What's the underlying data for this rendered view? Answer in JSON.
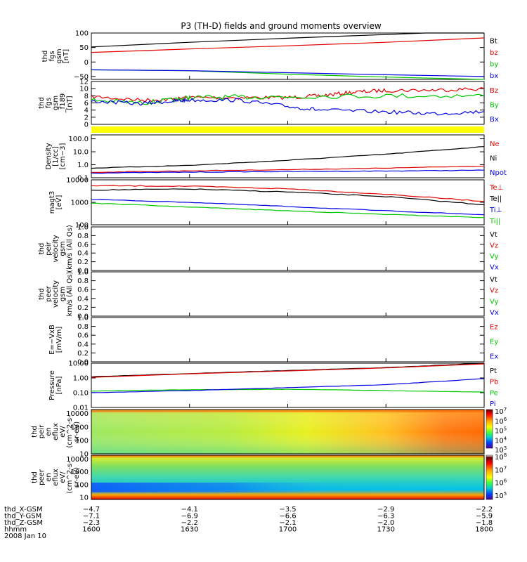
{
  "title": "P3 (TH-D) fields and ground moments overview",
  "colors": {
    "black": "#000000",
    "red": "#e00000",
    "green": "#00c800",
    "blue": "#0000e0"
  },
  "chart_data": [
    {
      "id": "p1",
      "type": "line",
      "ylabel": [
        "thd",
        "fgs",
        "gsm",
        "[nT]"
      ],
      "scale": "linear",
      "ylim": [
        -60,
        100
      ],
      "ticks": [
        100,
        50,
        0,
        -50
      ],
      "tick_labels": [
        "100",
        "50",
        "0",
        "−50"
      ],
      "legend": [
        {
          "text": "Bt",
          "color": "#000000"
        },
        {
          "text": "bz",
          "color": "#e00000"
        },
        {
          "text": "by",
          "color": "#00c800"
        },
        {
          "text": "bx",
          "color": "#0000e0"
        }
      ],
      "series": [
        {
          "color": "#000000",
          "noise": 0,
          "values": [
            [
              1600,
              52
            ],
            [
              1630,
              68
            ],
            [
              1700,
              82
            ],
            [
              1730,
              95
            ],
            [
              1742,
              100
            ],
            [
              1800,
              100
            ]
          ]
        },
        {
          "color": "#e00000",
          "noise": 0,
          "values": [
            [
              1600,
              33
            ],
            [
              1630,
              45
            ],
            [
              1700,
              56
            ],
            [
              1730,
              68
            ],
            [
              1800,
              83
            ]
          ]
        },
        {
          "color": "#00c800",
          "noise": 0,
          "values": [
            [
              1600,
              -27
            ],
            [
              1630,
              -30
            ],
            [
              1700,
              -42
            ],
            [
              1730,
              -52
            ],
            [
              1800,
              -60
            ]
          ]
        },
        {
          "color": "#0000e0",
          "noise": 0,
          "values": [
            [
              1600,
              -27
            ],
            [
              1630,
              -30
            ],
            [
              1700,
              -37
            ],
            [
              1730,
              -44
            ],
            [
              1800,
              -50
            ]
          ]
        }
      ]
    },
    {
      "id": "p2",
      "type": "line",
      "ylabel": [
        "thd",
        "fgs",
        "gsm",
        "_f189",
        "[nT]"
      ],
      "scale": "linear",
      "ylim": [
        0,
        12
      ],
      "ticks": [
        12,
        10,
        8,
        6,
        4,
        2,
        0
      ],
      "tick_labels": [
        "12",
        "10",
        "8",
        "6",
        "4",
        "2",
        "0"
      ],
      "legend": [
        {
          "text": "Bz",
          "color": "#e00000"
        },
        {
          "text": "By",
          "color": "#00c800"
        },
        {
          "text": "Bx",
          "color": "#0000e0"
        }
      ],
      "series": [
        {
          "color": "#e00000",
          "noise": 0.35,
          "values": [
            [
              1600,
              7.8
            ],
            [
              1615,
              6.8
            ],
            [
              1625,
              7.0
            ],
            [
              1630,
              7.5
            ],
            [
              1645,
              7.5
            ],
            [
              1700,
              7.5
            ],
            [
              1710,
              8.0
            ],
            [
              1720,
              9.0
            ],
            [
              1730,
              9.5
            ],
            [
              1745,
              9.6
            ],
            [
              1800,
              10.0
            ]
          ]
        },
        {
          "color": "#00c800",
          "noise": 0.45,
          "values": [
            [
              1600,
              6.8
            ],
            [
              1615,
              6.0
            ],
            [
              1625,
              6.8
            ],
            [
              1630,
              7.5
            ],
            [
              1645,
              7.6
            ],
            [
              1700,
              7.8
            ],
            [
              1730,
              8.0
            ],
            [
              1800,
              8.0
            ]
          ]
        },
        {
          "color": "#0000e0",
          "noise": 0.35,
          "values": [
            [
              1600,
              6.5
            ],
            [
              1615,
              5.8
            ],
            [
              1625,
              6.5
            ],
            [
              1630,
              6.8
            ],
            [
              1645,
              6.8
            ],
            [
              1700,
              5.0
            ],
            [
              1710,
              4.0
            ],
            [
              1730,
              3.5
            ],
            [
              1745,
              3.0
            ],
            [
              1800,
              3.6
            ]
          ]
        }
      ]
    },
    {
      "id": "p3",
      "type": "heatmap",
      "band_color": "#ffff00"
    },
    {
      "id": "p4",
      "type": "line",
      "ylabel": [
        "Density",
        "[1/cc]",
        "[cm−3]"
      ],
      "scale": "log",
      "ylim": [
        0.1,
        200
      ],
      "ticks": [
        100,
        10,
        1,
        0.1
      ],
      "tick_labels": [
        "100.0",
        "10.0",
        "1.0",
        "0.1"
      ],
      "legend": [
        {
          "text": "Ne",
          "color": "#e00000"
        },
        {
          "text": "Ni",
          "color": "#000000"
        },
        {
          "text": "Npot",
          "color": "#0000e0"
        }
      ],
      "series": [
        {
          "color": "#000000",
          "noise": 0.02,
          "values": [
            [
              1600,
              0.55
            ],
            [
              1630,
              0.9
            ],
            [
              1700,
              2.2
            ],
            [
              1730,
              6.5
            ],
            [
              1800,
              25
            ]
          ]
        },
        {
          "color": "#e00000",
          "noise": 0.02,
          "values": [
            [
              1600,
              0.26
            ],
            [
              1630,
              0.34
            ],
            [
              1700,
              0.42
            ],
            [
              1730,
              0.55
            ],
            [
              1800,
              0.8
            ]
          ]
        },
        {
          "color": "#0000e0",
          "noise": 0.02,
          "values": [
            [
              1600,
              0.23
            ],
            [
              1630,
              0.27
            ],
            [
              1700,
              0.3
            ],
            [
              1730,
              0.33
            ],
            [
              1800,
              0.38
            ]
          ]
        }
      ]
    },
    {
      "id": "p5",
      "type": "line",
      "ylabel": [
        "magt3",
        "[eV]"
      ],
      "scale": "log",
      "ylim": [
        100,
        10000
      ],
      "ticks": [
        10000,
        1000,
        100
      ],
      "tick_labels": [
        "10000",
        "1000",
        "100"
      ],
      "legend": [
        {
          "text": "Te⊥",
          "color": "#e00000"
        },
        {
          "text": "Te||",
          "color": "#000000"
        },
        {
          "text": "Ti⊥",
          "color": "#0000e0"
        },
        {
          "text": "Ti||",
          "color": "#00c800"
        }
      ],
      "series": [
        {
          "color": "#e00000",
          "noise": 0.03,
          "values": [
            [
              1600,
              5500
            ],
            [
              1630,
              5200
            ],
            [
              1700,
              4000
            ],
            [
              1730,
              2300
            ],
            [
              1800,
              1100
            ]
          ]
        },
        {
          "color": "#000000",
          "noise": 0.03,
          "values": [
            [
              1600,
              3500
            ],
            [
              1630,
              3900
            ],
            [
              1700,
              2900
            ],
            [
              1730,
              1800
            ],
            [
              1800,
              780
            ]
          ]
        },
        {
          "color": "#0000e0",
          "noise": 0.02,
          "values": [
            [
              1600,
              1350
            ],
            [
              1630,
              1000
            ],
            [
              1700,
              650
            ],
            [
              1730,
              420
            ],
            [
              1800,
              280
            ]
          ]
        },
        {
          "color": "#00c800",
          "noise": 0.02,
          "values": [
            [
              1600,
              920
            ],
            [
              1630,
              620
            ],
            [
              1700,
              420
            ],
            [
              1730,
              290
            ],
            [
              1800,
              210
            ]
          ]
        }
      ]
    },
    {
      "id": "p6",
      "type": "line",
      "ylabel": [
        "thd",
        "peir",
        "velocity",
        "gsm",
        "(km/s (All Qs)"
      ],
      "scale": "linear",
      "ylim": [
        0,
        1
      ],
      "ticks": [
        1.0,
        0.8,
        0.6,
        0.4,
        0.2,
        0.0
      ],
      "tick_labels": [
        "1.0",
        "0.8",
        "0.6",
        "0.4",
        "0.2",
        "0.0"
      ],
      "legend": [
        {
          "text": "Vt",
          "color": "#000000"
        },
        {
          "text": "Vz",
          "color": "#e00000"
        },
        {
          "text": "Vy",
          "color": "#00c800"
        },
        {
          "text": "Vx",
          "color": "#0000e0"
        }
      ],
      "series": []
    },
    {
      "id": "p7",
      "type": "line",
      "ylabel": [
        "thd",
        "peer",
        "velocity",
        "gsm",
        "km/s (All Qs)"
      ],
      "scale": "linear",
      "ylim": [
        0,
        1
      ],
      "ticks": [
        1.0,
        0.8,
        0.6,
        0.4,
        0.2,
        0.0
      ],
      "tick_labels": [
        "1.0",
        "0.8",
        "0.6",
        "0.4",
        "0.2",
        "0.0"
      ],
      "legend": [
        {
          "text": "Vt",
          "color": "#000000"
        },
        {
          "text": "Vz",
          "color": "#e00000"
        },
        {
          "text": "Vy",
          "color": "#00c800"
        },
        {
          "text": "Vx",
          "color": "#0000e0"
        }
      ],
      "series": []
    },
    {
      "id": "p8",
      "type": "line",
      "ylabel": [
        "E=−VxB",
        "[mV/m]"
      ],
      "scale": "linear",
      "ylim": [
        0,
        1
      ],
      "ticks": [
        1.0,
        0.8,
        0.6,
        0.4,
        0.2,
        0.0
      ],
      "tick_labels": [
        "1.0",
        "0.8",
        "0.6",
        "0.4",
        "0.2",
        "0.0"
      ],
      "legend": [
        {
          "text": "Ez",
          "color": "#e00000"
        },
        {
          "text": "Ey",
          "color": "#00c800"
        },
        {
          "text": "Ex",
          "color": "#0000e0"
        }
      ],
      "series": []
    },
    {
      "id": "p9",
      "type": "line",
      "ylabel": [
        "Pressure",
        "[nPa]"
      ],
      "scale": "log",
      "ylim": [
        0.01,
        10
      ],
      "ticks": [
        10,
        1,
        0.1,
        0.01
      ],
      "tick_labels": [
        "10.00",
        "1.00",
        "0.10",
        "0.01"
      ],
      "legend": [
        {
          "text": "Pt",
          "color": "#000000"
        },
        {
          "text": "Pb",
          "color": "#e00000"
        },
        {
          "text": "Pe",
          "color": "#00c800"
        },
        {
          "text": "Pi",
          "color": "#0000e0"
        }
      ],
      "series": [
        {
          "color": "#000000",
          "noise": 0.01,
          "values": [
            [
              1600,
              1.2
            ],
            [
              1630,
              2.0
            ],
            [
              1700,
              3.2
            ],
            [
              1730,
              5.0
            ],
            [
              1800,
              10.0
            ]
          ]
        },
        {
          "color": "#e00000",
          "noise": 0,
          "values": [
            [
              1600,
              1.1
            ],
            [
              1630,
              1.9
            ],
            [
              1700,
              3.0
            ],
            [
              1730,
              4.8
            ],
            [
              1800,
              9.0
            ]
          ]
        },
        {
          "color": "#00c800",
          "noise": 0.01,
          "values": [
            [
              1600,
              0.13
            ],
            [
              1630,
              0.16
            ],
            [
              1700,
              0.17
            ],
            [
              1730,
              0.14
            ],
            [
              1800,
              0.11
            ]
          ]
        },
        {
          "color": "#0000e0",
          "noise": 0.01,
          "values": [
            [
              1600,
              0.1
            ],
            [
              1630,
              0.14
            ],
            [
              1700,
              0.22
            ],
            [
              1730,
              0.35
            ],
            [
              1800,
              0.9
            ]
          ]
        }
      ]
    },
    {
      "id": "p10",
      "type": "heatmap",
      "ylabel": [
        "thd",
        "peir",
        "en",
        "eflux",
        "eV/",
        "(cm^2-s-",
        "sr-eV)"
      ],
      "scale": "log",
      "ylim": [
        10,
        20000
      ],
      "ticks": [
        10000,
        1000,
        100,
        10
      ],
      "tick_labels": [
        "10000",
        "1000",
        "100",
        "10"
      ],
      "colorbar": {
        "labels": [
          "10^7",
          "10^6",
          "10^5",
          "10^4",
          "10^3"
        ]
      }
    },
    {
      "id": "p11",
      "type": "heatmap",
      "ylabel": [
        "thd",
        "peer",
        "en",
        "eflux",
        "eV/",
        "(cm^2-s-",
        "sr-eV)"
      ],
      "scale": "log",
      "ylim": [
        7,
        20000
      ],
      "ticks": [
        10000,
        1000,
        100,
        10
      ],
      "tick_labels": [
        "10000",
        "1000",
        "100",
        "10"
      ],
      "colorbar": {
        "labels": [
          "10^8",
          "10^7",
          "10^6",
          "10^5"
        ]
      }
    }
  ],
  "xaxis": {
    "range": [
      1600,
      1800
    ],
    "rows": [
      {
        "label": "thd_X-GSM",
        "values": [
          "−4.7",
          "−4.1",
          "−3.5",
          "−2.9",
          "−2.2"
        ]
      },
      {
        "label": "thd_Y-GSM",
        "values": [
          "−7.1",
          "−6.9",
          "−6.6",
          "−6.3",
          "−5.9"
        ]
      },
      {
        "label": "thd_Z-GSM",
        "values": [
          "−2.3",
          "−2.2",
          "−2.1",
          "−2.0",
          "−1.8"
        ]
      },
      {
        "label": "hhmm",
        "values": [
          "1600",
          "1630",
          "1700",
          "1730",
          "1800"
        ]
      }
    ],
    "date": "2008 Jan 10"
  }
}
